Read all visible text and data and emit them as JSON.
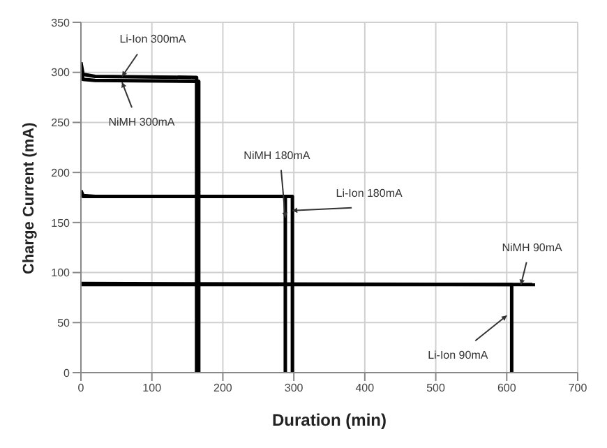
{
  "chart_data": {
    "type": "line",
    "xlabel": "Duration (min)",
    "ylabel": "Charge Current (mA)",
    "xlim": [
      0,
      700
    ],
    "xticks": [
      0,
      100,
      200,
      300,
      400,
      500,
      600,
      700
    ],
    "ylim": [
      0,
      350
    ],
    "yticks": [
      0,
      50,
      100,
      150,
      200,
      250,
      300,
      350
    ],
    "grid": true,
    "marker": "none",
    "line_style": "solid",
    "series": [
      {
        "color": "#000000",
        "x": [
          0,
          3,
          20,
          163,
          163
        ],
        "values": [
          310,
          298,
          296,
          295,
          0
        ]
      },
      {
        "color": "#000000",
        "x": [
          0,
          3,
          20,
          166,
          166
        ],
        "values": [
          305,
          293,
          292,
          291,
          0
        ]
      },
      {
        "color": "#000000",
        "x": [
          0,
          3,
          20,
          288,
          288
        ],
        "values": [
          182,
          177,
          176,
          176,
          0
        ]
      },
      {
        "color": "#000000",
        "x": [
          0,
          3,
          298,
          298
        ],
        "values": [
          180,
          176,
          176,
          0
        ]
      },
      {
        "color": "#000000",
        "x": [
          0,
          640
        ],
        "values": [
          89,
          88
        ]
      },
      {
        "color": "#000000",
        "x": [
          0,
          607,
          607
        ],
        "values": [
          88,
          88,
          0
        ]
      }
    ],
    "annotations": [
      {
        "text": "Li-Ion 300mA",
        "x": 58,
        "y": 296
      },
      {
        "text": "NiMH 300mA",
        "x": 58,
        "y": 290
      },
      {
        "text": "NiMH 180mA",
        "x": 288,
        "y": 155
      },
      {
        "text": "Li-Ion 180mA",
        "x": 298,
        "y": 162
      },
      {
        "text": "NiMH 90mA",
        "x": 620,
        "y": 88
      },
      {
        "text": "Li-Ion 90mA",
        "x": 600,
        "y": 57
      }
    ]
  }
}
